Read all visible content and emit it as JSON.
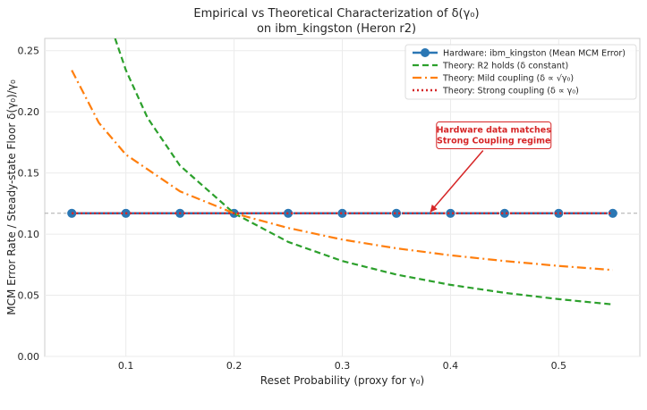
{
  "colors": {
    "hardware": "#2b77b4",
    "r2": "#2ca02c",
    "mild": "#ff7f0e",
    "strong": "#d62728",
    "annotation": "#d62728",
    "grid": "#ebebeb",
    "reference_line": "#aaaaaa"
  },
  "chart_data": {
    "type": "line",
    "title": "Empirical vs Theoretical Characterization of δ(γ₀)",
    "subtitle": "on ibm_kingston (Heron r2)",
    "xlabel": "Reset Probability (proxy for γ₀)",
    "ylabel": "MCM Error Rate / Steady-state Floor δ(γ₀)/γ₀",
    "xlim": [
      0.025,
      0.575
    ],
    "ylim": [
      0.0,
      0.26
    ],
    "x_ticks": [
      0.1,
      0.2,
      0.3,
      0.4,
      0.5
    ],
    "x_tick_labels": [
      "0.1",
      "0.2",
      "0.3",
      "0.4",
      "0.5"
    ],
    "y_ticks": [
      0.0,
      0.05,
      0.1,
      0.15,
      0.2,
      0.25
    ],
    "y_tick_labels": [
      "0.00",
      "0.05",
      "0.10",
      "0.15",
      "0.20",
      "0.25"
    ],
    "grid": true,
    "legend_position": "top-right",
    "reference_line": {
      "y": 0.117,
      "style": "dashed"
    },
    "series": [
      {
        "name": "Hardware: ibm_kingston (Mean MCM Error)",
        "style": "solid-markers",
        "x": [
          0.05,
          0.1,
          0.15,
          0.2,
          0.25,
          0.3,
          0.35,
          0.4,
          0.45,
          0.5,
          0.55
        ],
        "y": [
          0.117,
          0.117,
          0.117,
          0.117,
          0.117,
          0.117,
          0.117,
          0.117,
          0.117,
          0.117,
          0.117
        ]
      },
      {
        "name": "Theory: R2 holds (δ constant)",
        "style": "dashed",
        "x": [
          0.09,
          0.1,
          0.12,
          0.15,
          0.2,
          0.25,
          0.3,
          0.35,
          0.4,
          0.45,
          0.5,
          0.55
        ],
        "y": [
          0.26,
          0.234,
          0.195,
          0.156,
          0.117,
          0.0936,
          0.078,
          0.0669,
          0.0585,
          0.052,
          0.0468,
          0.0425
        ]
      },
      {
        "name": "Theory: Mild coupling (δ ∝ √γ₀)",
        "style": "dashdot",
        "x": [
          0.05,
          0.075,
          0.1,
          0.15,
          0.2,
          0.25,
          0.3,
          0.35,
          0.4,
          0.45,
          0.5,
          0.55
        ],
        "y": [
          0.234,
          0.191,
          0.165,
          0.135,
          0.117,
          0.105,
          0.0955,
          0.0884,
          0.0827,
          0.078,
          0.074,
          0.0706
        ]
      },
      {
        "name": "Theory: Strong coupling (δ ∝ γ₀)",
        "style": "dotted",
        "x": [
          0.05,
          0.55
        ],
        "y": [
          0.117,
          0.117
        ]
      }
    ],
    "annotation": {
      "text_lines": [
        "Hardware data matches",
        "Strong Coupling regime"
      ],
      "text_at": [
        0.44,
        0.18
      ],
      "arrow_to": [
        0.38,
        0.117
      ]
    }
  }
}
